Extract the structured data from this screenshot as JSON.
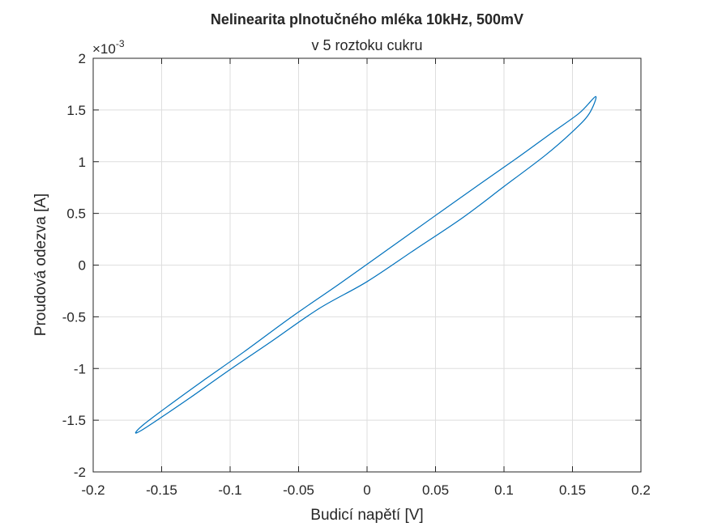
{
  "chart_data": {
    "type": "line",
    "title": "Nelinearita plnotučného mléka 10kHz, 500mV",
    "subtitle": "v 5 roztoku cukru",
    "xlabel": "Budicí napětí [V]",
    "ylabel": "Proudová odezva [A]",
    "xlim": [
      -0.2,
      0.2
    ],
    "ylim": [
      -2,
      2
    ],
    "y_exponent_base": "×10",
    "y_exponent_power": "-3",
    "x_ticks": [
      -0.2,
      -0.15,
      -0.1,
      -0.05,
      0,
      0.05,
      0.1,
      0.15,
      0.2
    ],
    "x_tick_labels": [
      "-0.2",
      "-0.15",
      "-0.1",
      "-0.05",
      "0",
      "0.05",
      "0.1",
      "0.15",
      "0.2"
    ],
    "y_ticks": [
      -2,
      -1.5,
      -1,
      -0.5,
      0,
      0.5,
      1,
      1.5,
      2
    ],
    "y_tick_labels": [
      "-2",
      "-1.5",
      "-1",
      "-0.5",
      "0",
      "0.5",
      "1",
      "1.5",
      "2"
    ],
    "grid": true,
    "line_color": "#0072BD",
    "series": [
      {
        "x": [
          0.167,
          0.155,
          0.135,
          0.11,
          0.083,
          0.05,
          0.015,
          -0.02,
          -0.055,
          -0.09,
          -0.12,
          -0.145,
          -0.163,
          -0.169,
          -0.165,
          -0.15,
          -0.13,
          -0.1,
          -0.07,
          -0.035,
          0.0,
          0.035,
          0.07,
          0.1,
          0.13,
          0.15,
          0.162,
          0.167
        ],
        "y": [
          1.63,
          1.47,
          1.28,
          1.04,
          0.79,
          0.48,
          0.15,
          -0.18,
          -0.5,
          -0.84,
          -1.12,
          -1.36,
          -1.54,
          -1.62,
          -1.6,
          -1.47,
          -1.29,
          -1.01,
          -0.74,
          -0.42,
          -0.16,
          0.15,
          0.46,
          0.76,
          1.06,
          1.29,
          1.46,
          1.63
        ]
      }
    ]
  }
}
